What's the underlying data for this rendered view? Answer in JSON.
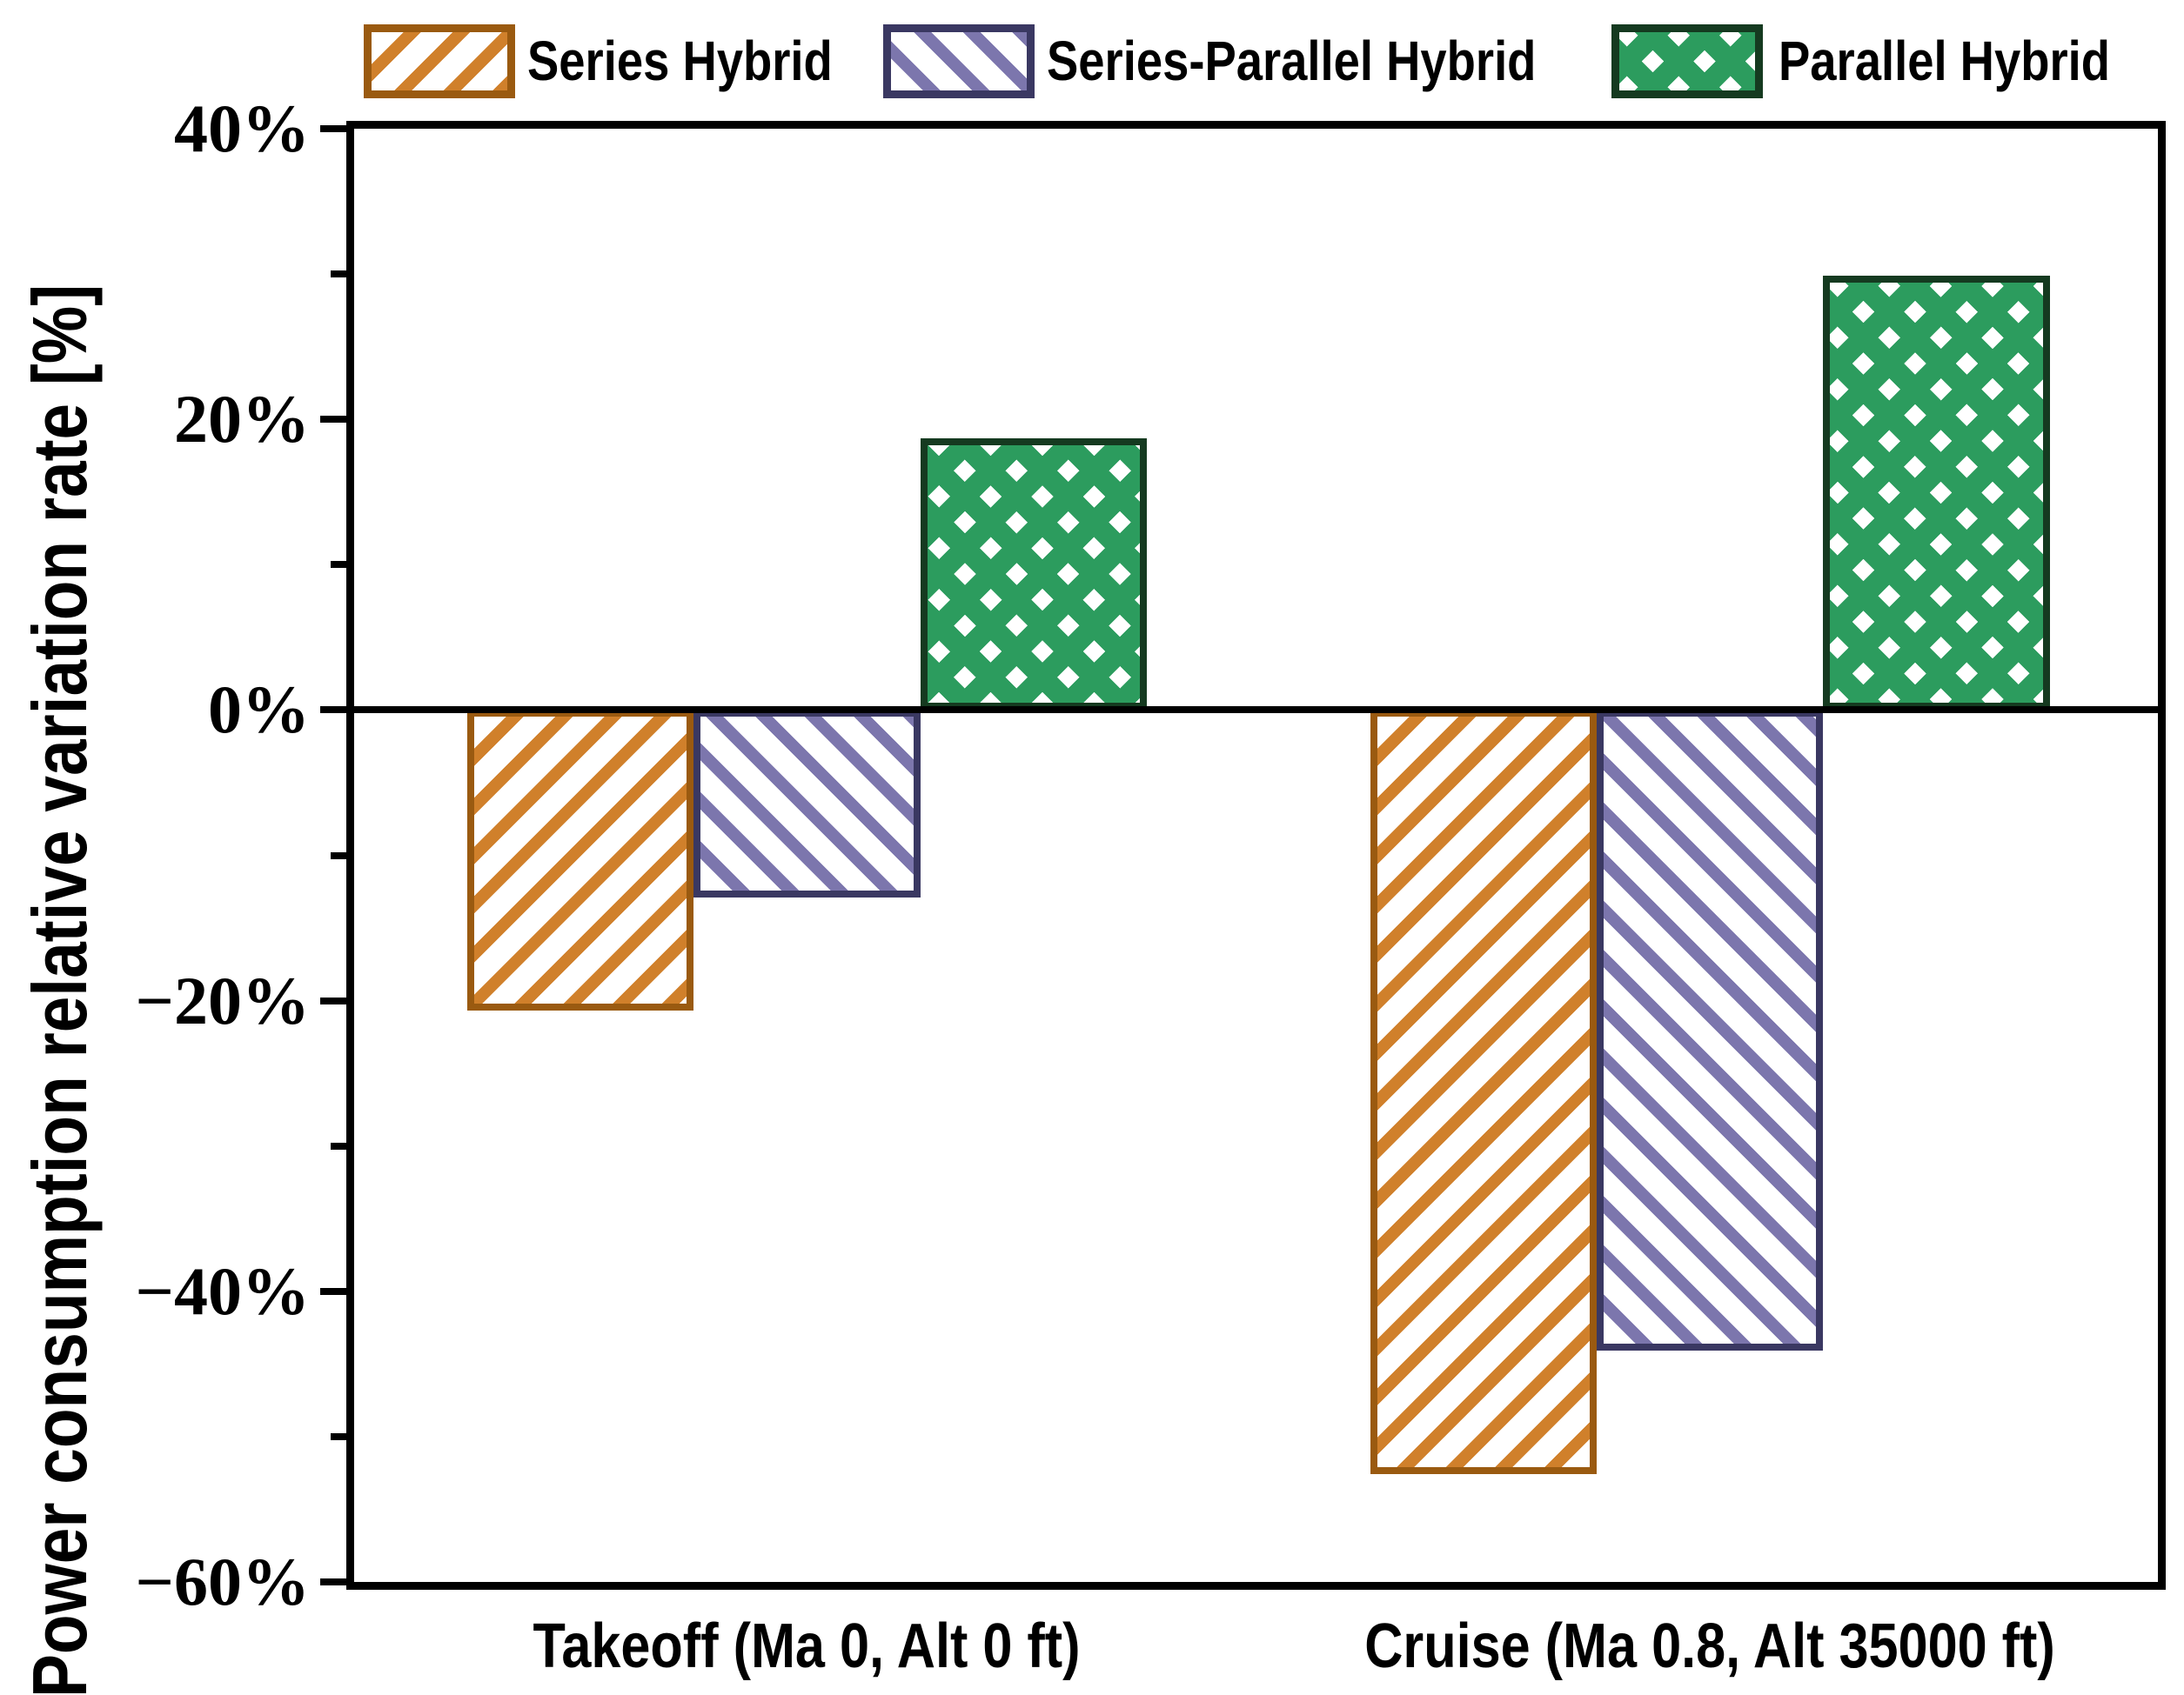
{
  "figure": {
    "background": "#ffffff"
  },
  "legend": {
    "position": "top",
    "items": [
      {
        "label": "Series Hybrid",
        "hatch": "///",
        "face_color": "#D0802B",
        "edge_color": "#9A5A10"
      },
      {
        "label": "Series-Parallel Hybrid",
        "hatch": "\\\\",
        "face_color": "#7C76AD",
        "edge_color": "#3A3862"
      },
      {
        "label": "Parallel Hybrid",
        "hatch": "xx",
        "face_color": "#2C9C5E",
        "edge_color": "#153A20"
      }
    ]
  },
  "y_axis": {
    "title": "Power consumption relative variation rate [%]",
    "tick_labels": [
      "40%",
      "20%",
      "0%",
      "−20%",
      "−40%",
      "−60%"
    ],
    "major_tick_values": [
      40,
      20,
      0,
      -20,
      -40,
      -60
    ],
    "minor_tick_values": [
      30,
      10,
      -10,
      -30,
      -50
    ],
    "range": [
      -60,
      40
    ]
  },
  "x_axis": {
    "tick_labels": [
      "Takeoff (Ma 0, Alt 0 ft)",
      "Cruise (Ma 0.8, Alt 35000 ft)"
    ]
  },
  "chart_data": {
    "type": "bar",
    "title": "",
    "xlabel": "",
    "ylabel": "Power consumption relative variation rate [%]",
    "categories": [
      "Takeoff (Ma 0, Alt 0 ft)",
      "Cruise (Ma 0.8, Alt 35000 ft)"
    ],
    "series": [
      {
        "name": "Series Hybrid",
        "values": [
          -20.7,
          -52.6
        ],
        "face_color": "#D0802B",
        "edge_color": "#9A5A10",
        "hatch": "///"
      },
      {
        "name": "Series-Parallel Hybrid",
        "values": [
          -12.9,
          -44.1
        ],
        "face_color": "#7C76AD",
        "edge_color": "#3A3862",
        "hatch": "\\\\"
      },
      {
        "name": "Parallel Hybrid",
        "values": [
          18.7,
          29.9
        ],
        "face_color": "#2C9C5E",
        "edge_color": "#153A20",
        "hatch": "xx"
      }
    ],
    "ylim": [
      -60,
      40
    ],
    "ytick_step_major": 20,
    "ytick_step_minor": 10,
    "ytick_format": "percent",
    "grid": false,
    "zero_line": true,
    "legend_position": "top",
    "bar_unit": "%"
  }
}
